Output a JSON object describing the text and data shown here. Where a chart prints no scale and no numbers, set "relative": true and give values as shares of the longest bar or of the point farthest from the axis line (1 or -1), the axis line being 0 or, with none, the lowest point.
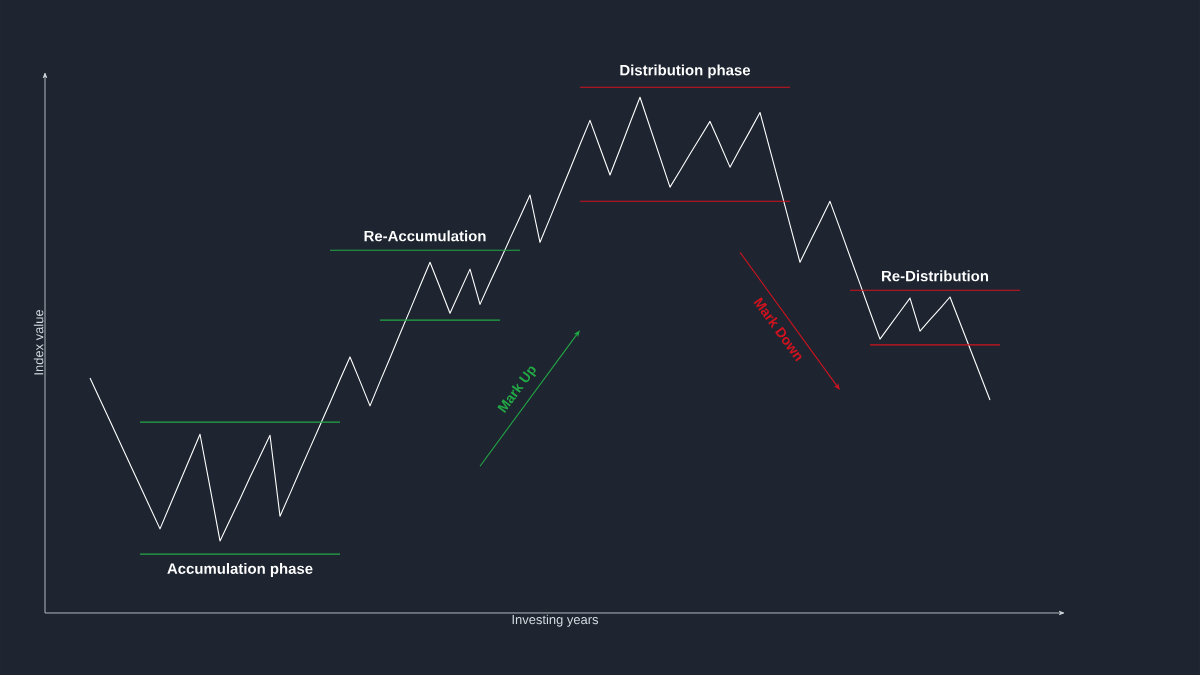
{
  "chart_data": {
    "type": "line",
    "relative": true,
    "xlabel": "Investing years",
    "ylabel": "Index value",
    "categories": [
      null,
      null,
      null,
      null,
      null,
      null,
      null,
      null,
      null,
      null,
      null,
      null,
      null,
      null,
      null,
      null,
      null,
      null,
      null,
      null,
      null,
      null,
      null,
      null,
      null,
      null,
      null,
      null,
      null,
      null,
      null,
      null,
      null,
      null,
      null,
      null,
      null,
      null,
      null,
      null,
      null,
      null,
      null,
      null,
      null,
      null,
      null,
      null,
      null,
      null,
      null,
      null,
      null,
      null,
      null,
      null,
      null,
      null,
      null,
      null,
      null,
      null,
      null,
      null,
      null,
      null,
      null,
      null,
      null,
      null,
      null,
      null,
      null,
      null,
      null,
      null,
      null,
      null,
      null,
      null,
      null,
      null,
      null,
      null,
      null,
      null,
      null,
      null,
      null,
      null,
      null,
      null,
      null,
      null
    ],
    "series": [
      {
        "color": "#ffffff",
        "values": [
          0.447,
          0.406,
          0.365,
          0.324,
          0.283,
          0.242,
          0.201,
          0.16,
          0.205,
          0.25,
          0.295,
          0.34,
          0.239,
          0.137,
          0.177,
          0.217,
          0.258,
          0.298,
          0.338,
          0.184,
          0.227,
          0.271,
          0.314,
          0.357,
          0.4,
          0.444,
          0.487,
          0.441,
          0.394,
          0.44,
          0.485,
          0.531,
          0.576,
          0.622,
          0.667,
          0.619,
          0.57,
          0.612,
          0.654,
          0.587,
          0.629,
          0.67,
          0.712,
          0.753,
          0.795,
          0.705,
          0.751,
          0.798,
          0.844,
          0.891,
          0.937,
          0.885,
          0.833,
          0.882,
          0.932,
          0.981,
          0.924,
          0.867,
          0.81,
          0.841,
          0.873,
          0.904,
          0.935,
          0.892,
          0.848,
          0.883,
          0.917,
          0.952,
          0.881,
          0.81,
          0.738,
          0.667,
          0.706,
          0.744,
          0.783,
          0.731,
          0.678,
          0.626,
          0.573,
          0.521,
          0.547,
          0.573,
          0.599,
          0.536,
          0.558,
          0.579,
          0.601,
          0.552,
          0.503,
          0.454,
          0.405,
          null,
          null,
          null
        ]
      },
      {
        "color": "#22a845",
        "values": [
          null,
          null,
          null,
          null,
          null,
          0.363,
          0.363,
          0.363,
          0.363,
          0.363,
          0.363,
          0.363,
          0.363,
          0.363,
          0.363,
          0.363,
          0.363,
          0.363,
          0.363,
          0.363,
          0.363,
          0.363,
          0.363,
          0.363,
          0.363,
          0.363,
          null,
          null,
          null,
          null,
          null,
          null,
          null,
          null,
          null,
          null,
          null,
          null,
          null,
          null,
          null,
          null,
          null,
          null,
          null,
          null,
          null,
          null,
          null,
          null,
          null,
          null,
          null,
          null,
          null,
          null,
          null,
          null,
          null,
          null,
          null,
          null,
          null,
          null,
          null,
          null,
          null,
          null,
          null,
          null,
          null,
          null,
          null,
          null,
          null,
          null,
          null,
          null,
          null,
          null,
          null,
          null,
          null,
          null,
          null,
          null,
          null,
          null,
          null,
          null,
          null,
          null,
          null,
          null
        ]
      },
      {
        "name": "Accumulation phase",
        "color": "#22a845",
        "values": [
          null,
          null,
          null,
          null,
          null,
          0.112,
          0.112,
          0.112,
          0.112,
          0.112,
          0.112,
          0.112,
          0.112,
          0.112,
          0.112,
          0.112,
          0.112,
          0.112,
          0.112,
          0.112,
          0.112,
          0.112,
          0.112,
          0.112,
          0.112,
          0.112,
          null,
          null,
          null,
          null,
          null,
          null,
          null,
          null,
          null,
          null,
          null,
          null,
          null,
          null,
          null,
          null,
          null,
          null,
          null,
          null,
          null,
          null,
          null,
          null,
          null,
          null,
          null,
          null,
          null,
          null,
          null,
          null,
          null,
          null,
          null,
          null,
          null,
          null,
          null,
          null,
          null,
          null,
          null,
          null,
          null,
          null,
          null,
          null,
          null,
          null,
          null,
          null,
          null,
          null,
          null,
          null,
          null,
          null,
          null,
          null,
          null,
          null,
          null,
          null,
          null,
          null,
          null,
          null
        ]
      },
      {
        "name": "Re-Accumulation",
        "color": "#22a845",
        "values": [
          null,
          null,
          null,
          null,
          null,
          null,
          null,
          null,
          null,
          null,
          null,
          null,
          null,
          null,
          null,
          null,
          null,
          null,
          null,
          null,
          null,
          null,
          null,
          null,
          0.69,
          0.69,
          0.69,
          0.69,
          0.69,
          0.69,
          0.69,
          0.69,
          0.69,
          0.69,
          0.69,
          0.69,
          0.69,
          0.69,
          0.69,
          0.69,
          0.69,
          0.69,
          0.69,
          0.69,
          null,
          null,
          null,
          null,
          null,
          null,
          null,
          null,
          null,
          null,
          null,
          null,
          null,
          null,
          null,
          null,
          null,
          null,
          null,
          null,
          null,
          null,
          null,
          null,
          null,
          null,
          null,
          null,
          null,
          null,
          null,
          null,
          null,
          null,
          null,
          null,
          null,
          null,
          null,
          null,
          null,
          null,
          null,
          null,
          null,
          null,
          null,
          null,
          null,
          null
        ]
      },
      {
        "color": "#22a845",
        "values": [
          null,
          null,
          null,
          null,
          null,
          null,
          null,
          null,
          null,
          null,
          null,
          null,
          null,
          null,
          null,
          null,
          null,
          null,
          null,
          null,
          null,
          null,
          null,
          null,
          null,
          null,
          null,
          null,
          null,
          0.557,
          0.557,
          0.557,
          0.557,
          0.557,
          0.557,
          0.557,
          0.557,
          0.557,
          0.557,
          0.557,
          0.557,
          0.557,
          null,
          null,
          null,
          null,
          null,
          null,
          null,
          null,
          null,
          null,
          null,
          null,
          null,
          null,
          null,
          null,
          null,
          null,
          null,
          null,
          null,
          null,
          null,
          null,
          null,
          null,
          null,
          null,
          null,
          null,
          null,
          null,
          null,
          null,
          null,
          null,
          null,
          null,
          null,
          null,
          null,
          null,
          null,
          null,
          null,
          null,
          null,
          null,
          null,
          null,
          null,
          null
        ]
      },
      {
        "name": "Distribution phase",
        "color": "#d0131f",
        "values": [
          null,
          null,
          null,
          null,
          null,
          null,
          null,
          null,
          null,
          null,
          null,
          null,
          null,
          null,
          null,
          null,
          null,
          null,
          null,
          null,
          null,
          null,
          null,
          null,
          null,
          null,
          null,
          null,
          null,
          null,
          null,
          null,
          null,
          null,
          null,
          null,
          null,
          null,
          null,
          null,
          null,
          null,
          null,
          null,
          null,
          null,
          null,
          null,
          null,
          1,
          1,
          1,
          1,
          1,
          1,
          1,
          1,
          1,
          1,
          1,
          1,
          1,
          1,
          1,
          1,
          1,
          1,
          1,
          1,
          1,
          1,
          null,
          null,
          null,
          null,
          null,
          null,
          null,
          null,
          null,
          null,
          null,
          null,
          null,
          null,
          null,
          null,
          null,
          null,
          null,
          null,
          null,
          null,
          null
        ]
      },
      {
        "color": "#d0131f",
        "values": [
          null,
          null,
          null,
          null,
          null,
          null,
          null,
          null,
          null,
          null,
          null,
          null,
          null,
          null,
          null,
          null,
          null,
          null,
          null,
          null,
          null,
          null,
          null,
          null,
          null,
          null,
          null,
          null,
          null,
          null,
          null,
          null,
          null,
          null,
          null,
          null,
          null,
          null,
          null,
          null,
          null,
          null,
          null,
          null,
          null,
          null,
          null,
          null,
          null,
          0.783,
          0.783,
          0.783,
          0.783,
          0.783,
          0.783,
          0.783,
          0.783,
          0.783,
          0.783,
          0.783,
          0.783,
          0.783,
          0.783,
          0.783,
          0.783,
          0.783,
          0.783,
          0.783,
          0.783,
          0.783,
          0.783,
          null,
          null,
          null,
          null,
          null,
          null,
          null,
          null,
          null,
          null,
          null,
          null,
          null,
          null,
          null,
          null,
          null,
          null,
          null,
          null,
          null,
          null,
          null
        ]
      },
      {
        "name": "Re-Distribution",
        "color": "#d0131f",
        "values": [
          null,
          null,
          null,
          null,
          null,
          null,
          null,
          null,
          null,
          null,
          null,
          null,
          null,
          null,
          null,
          null,
          null,
          null,
          null,
          null,
          null,
          null,
          null,
          null,
          null,
          null,
          null,
          null,
          null,
          null,
          null,
          null,
          null,
          null,
          null,
          null,
          null,
          null,
          null,
          null,
          null,
          null,
          null,
          null,
          null,
          null,
          null,
          null,
          null,
          null,
          null,
          null,
          null,
          null,
          null,
          null,
          null,
          null,
          null,
          null,
          null,
          null,
          null,
          null,
          null,
          null,
          null,
          null,
          null,
          null,
          null,
          null,
          null,
          null,
          null,
          null,
          0.614,
          0.614,
          0.614,
          0.614,
          0.614,
          0.614,
          0.614,
          0.614,
          0.614,
          0.614,
          0.614,
          0.614,
          0.614,
          0.614,
          0.614,
          0.614,
          0.614,
          0.614
        ]
      },
      {
        "color": "#d0131f",
        "values": [
          null,
          null,
          null,
          null,
          null,
          null,
          null,
          null,
          null,
          null,
          null,
          null,
          null,
          null,
          null,
          null,
          null,
          null,
          null,
          null,
          null,
          null,
          null,
          null,
          null,
          null,
          null,
          null,
          null,
          null,
          null,
          null,
          null,
          null,
          null,
          null,
          null,
          null,
          null,
          null,
          null,
          null,
          null,
          null,
          null,
          null,
          null,
          null,
          null,
          null,
          null,
          null,
          null,
          null,
          null,
          null,
          null,
          null,
          null,
          null,
          null,
          null,
          null,
          null,
          null,
          null,
          null,
          null,
          null,
          null,
          null,
          null,
          null,
          null,
          null,
          null,
          null,
          null,
          0.51,
          0.51,
          0.51,
          0.51,
          0.51,
          0.51,
          0.51,
          0.51,
          0.51,
          0.51,
          0.51,
          0.51,
          0.51,
          0.51,
          null,
          null
        ]
      }
    ],
    "annotations": [
      "Mark Up",
      "Mark Down"
    ]
  }
}
